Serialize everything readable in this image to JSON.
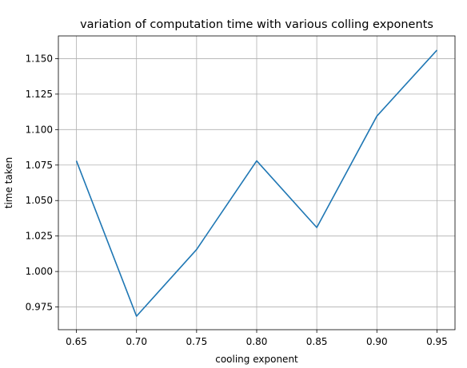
{
  "chart_data": {
    "type": "line",
    "title": "variation of computation time with various colling exponents",
    "xlabel": "cooling exponent",
    "ylabel": "time taken",
    "x": [
      0.65,
      0.7,
      0.75,
      0.8,
      0.85,
      0.9,
      0.95
    ],
    "series": [
      {
        "values": [
          1.078,
          0.9685,
          1.0155,
          1.078,
          1.031,
          1.1095,
          1.156
        ],
        "color": "#1f77b4"
      }
    ],
    "xticks": [
      "0.65",
      "0.70",
      "0.75",
      "0.80",
      "0.85",
      "0.90",
      "0.95"
    ],
    "yticks": [
      "0.975",
      "1.000",
      "1.025",
      "1.050",
      "1.075",
      "1.100",
      "1.125",
      "1.150"
    ],
    "xlim": [
      0.635,
      0.965
    ],
    "ylim": [
      0.959,
      1.166
    ],
    "grid": true
  }
}
